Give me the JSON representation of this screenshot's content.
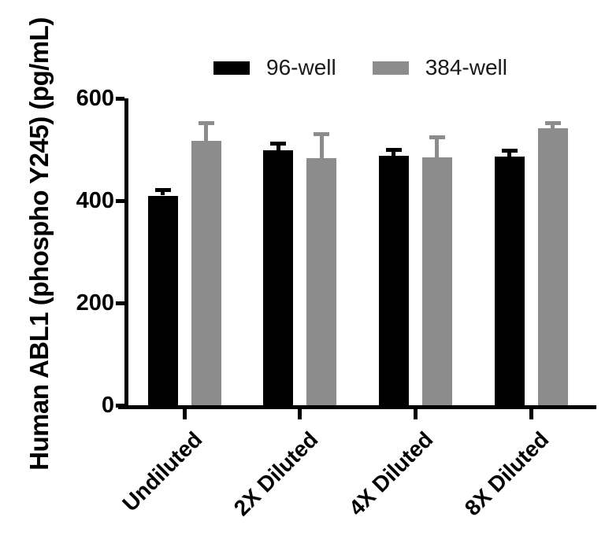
{
  "chart_data": {
    "type": "bar",
    "title": "",
    "ylabel": "Human ABL1 (phospho Y245) (pg/mL)",
    "xlabel": "",
    "categories": [
      "Undiluted",
      "2X Diluted",
      "4X Diluted",
      "8X Diluted"
    ],
    "series": [
      {
        "name": "96-well",
        "color": "#000000",
        "values": [
          410,
          499,
          488,
          486
        ],
        "errors": [
          11,
          13,
          12,
          12
        ]
      },
      {
        "name": "384-well",
        "color": "#8C8C8C",
        "values": [
          517,
          483,
          484,
          541
        ],
        "errors": [
          36,
          48,
          41,
          11
        ]
      }
    ],
    "ylim": [
      0,
      600
    ],
    "yticks": [
      0,
      200,
      400,
      600
    ],
    "error_bars": "upper",
    "grid": false,
    "legend_position": "top-center",
    "background_color": "#FFFFFF",
    "axis_color": "#000000"
  }
}
